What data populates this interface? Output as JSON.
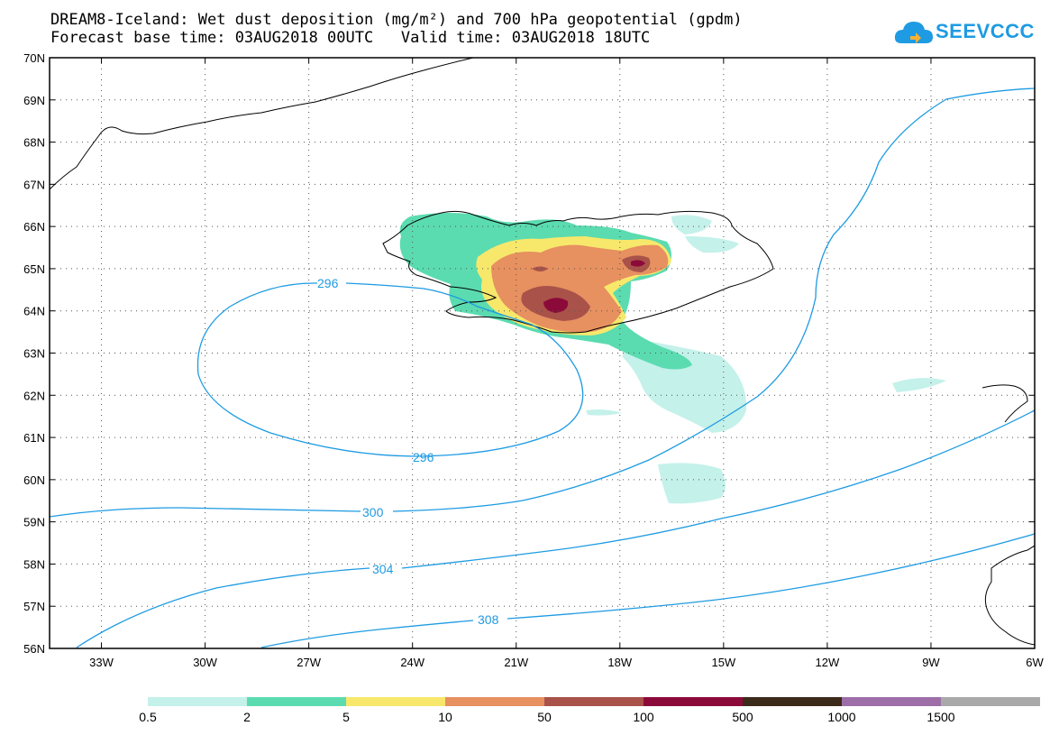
{
  "title": {
    "line1": "DREAM8-Iceland: Wet dust deposition (mg/m²) and 700 hPa geopotential (gpdm)",
    "line2": "Forecast base time: 03AUG2018 00UTC   Valid time: 03AUG2018 18UTC"
  },
  "logo": {
    "text": "SEEVCCC",
    "icon": "cloud-icon"
  },
  "map": {
    "lat_labels": [
      "70N",
      "69N",
      "68N",
      "67N",
      "66N",
      "65N",
      "64N",
      "63N",
      "62N",
      "61N",
      "60N",
      "59N",
      "58N",
      "57N",
      "56N"
    ],
    "lon_labels": [
      "33W",
      "30W",
      "27W",
      "24W",
      "21W",
      "18W",
      "15W",
      "12W",
      "9W",
      "6W"
    ],
    "lat_range": [
      56,
      70
    ],
    "lon_range": [
      -34.5,
      -6
    ],
    "contour_labels": [
      "296",
      "296",
      "300",
      "304",
      "308"
    ],
    "contour_color": "#1e9be2",
    "coastline_color": "#000000"
  },
  "colorbar": {
    "labels": [
      "0.5",
      "2",
      "5",
      "10",
      "50",
      "100",
      "500",
      "1000",
      "1500"
    ],
    "colors": [
      "#c4f1ea",
      "#5bdbb0",
      "#f7e86c",
      "#e79060",
      "#a9524a",
      "#8c0a3a",
      "#3c2a1a",
      "#9e6ea9",
      "#a9a9a9"
    ]
  }
}
